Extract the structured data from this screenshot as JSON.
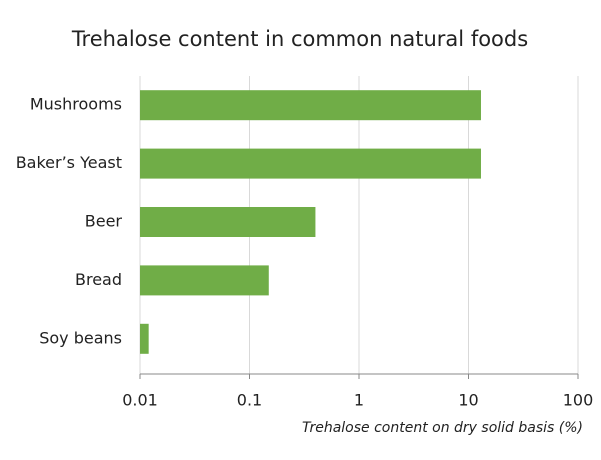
{
  "chart_data": {
    "type": "bar",
    "orientation": "horizontal",
    "title": "Trehalose content in common natural foods",
    "x_label": "Trehalose content on dry solid basis (%)",
    "categories": [
      "Mushrooms",
      "Baker’s Yeast",
      "Beer",
      "Bread",
      "Soy beans"
    ],
    "values": [
      13,
      13,
      0.4,
      0.15,
      0.012
    ],
    "color": "#70ad47",
    "xlim": [
      0.01,
      100
    ],
    "xticks": [
      0.01,
      0.1,
      1,
      10,
      100
    ],
    "x_log_scale": true,
    "grid": true
  }
}
